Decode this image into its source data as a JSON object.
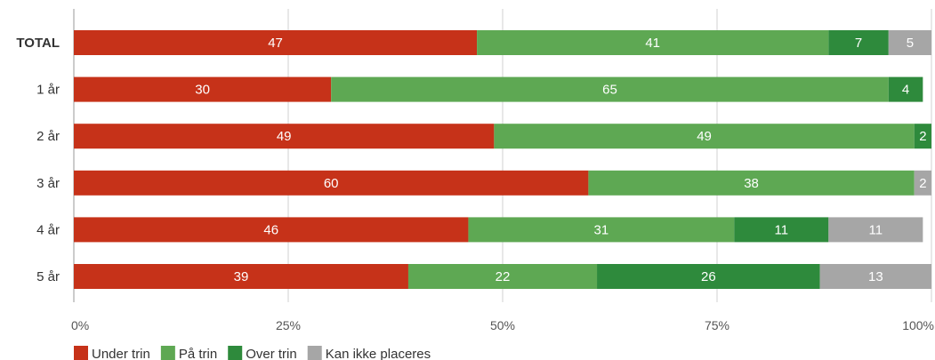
{
  "chart_data": {
    "type": "bar",
    "orientation": "horizontal",
    "stacked": true,
    "categories": [
      "TOTAL",
      "1 år",
      "2 år",
      "3 år",
      "4 år",
      "5 år"
    ],
    "series": [
      {
        "name": "Under trin",
        "color": "#c63219",
        "values": [
          47,
          30,
          49,
          60,
          46,
          39
        ]
      },
      {
        "name": "På trin",
        "color": "#5ea853",
        "values": [
          41,
          65,
          49,
          38,
          31,
          22
        ]
      },
      {
        "name": "Over trin",
        "color": "#2e8a3c",
        "values": [
          7,
          4,
          2,
          0,
          11,
          26
        ]
      },
      {
        "name": "Kan ikke placeres",
        "color": "#a6a6a6",
        "values": [
          5,
          0,
          0,
          2,
          11,
          13
        ]
      }
    ],
    "xlim": [
      0,
      100
    ],
    "xticks": [
      "0%",
      "25%",
      "50%",
      "75%",
      "100%"
    ],
    "grid": true,
    "legend_position": "bottom-left"
  }
}
